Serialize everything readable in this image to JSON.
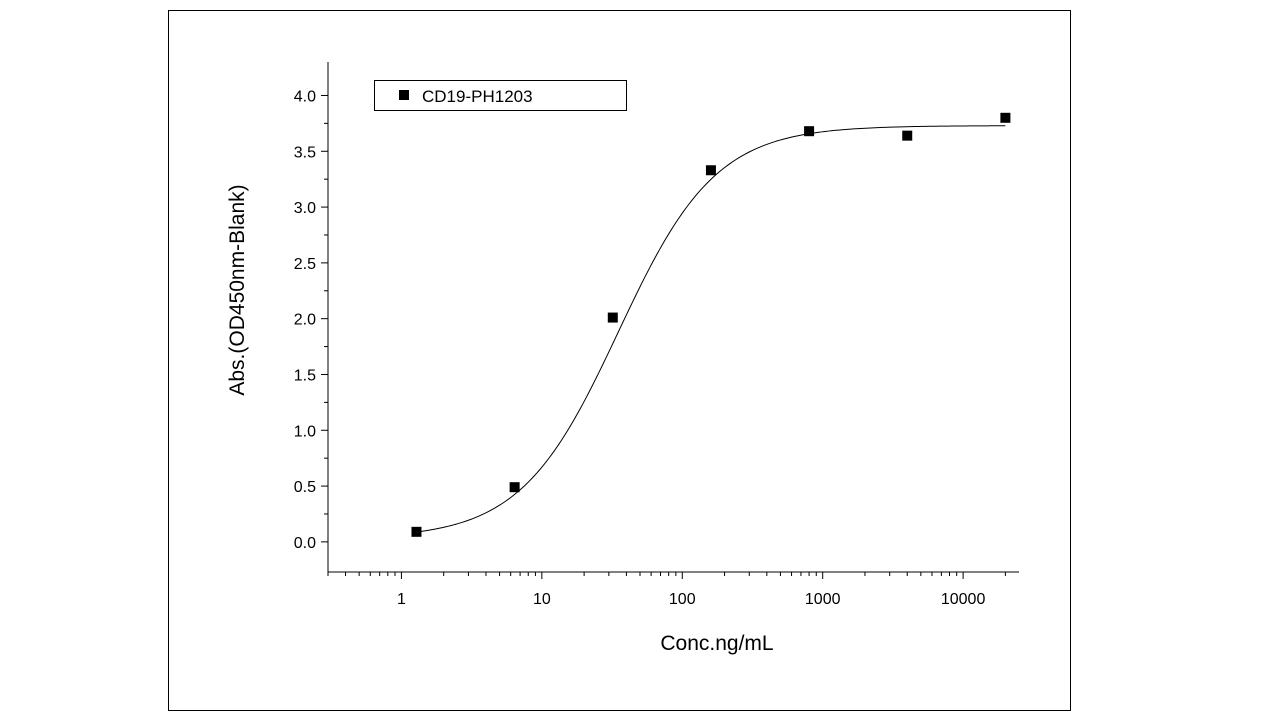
{
  "chart_data": {
    "type": "scatter",
    "title": "",
    "xlabel": "Conc.ng/mL",
    "ylabel": "Abs.(OD450nm-Blank)",
    "x_scale": "log",
    "xlim": [
      0.3,
      25000
    ],
    "ylim": [
      -0.27,
      4.3
    ],
    "x_ticks": [
      "1",
      "10",
      "100",
      "1000",
      "10000"
    ],
    "x_tick_values": [
      1,
      10,
      100,
      1000,
      10000
    ],
    "y_ticks": [
      "0.0",
      "0.5",
      "1.0",
      "1.5",
      "2.0",
      "2.5",
      "3.0",
      "3.5",
      "4.0"
    ],
    "y_tick_values": [
      0,
      0.5,
      1.0,
      1.5,
      2.0,
      2.5,
      3.0,
      3.5,
      4.0
    ],
    "grid": false,
    "legend_position": "top-left",
    "series": [
      {
        "name": "CD19-PH1203",
        "marker": "square",
        "color": "#000000",
        "x": [
          1.28,
          6.4,
          32,
          160,
          800,
          4000,
          20000
        ],
        "y": [
          0.09,
          0.49,
          2.01,
          3.33,
          3.68,
          3.64,
          3.8
        ]
      }
    ],
    "fit_curve": {
      "type": "4PL",
      "bottom": 0.03,
      "top": 3.73,
      "ec50": 35,
      "hill": 1.25,
      "color": "#000000"
    }
  }
}
